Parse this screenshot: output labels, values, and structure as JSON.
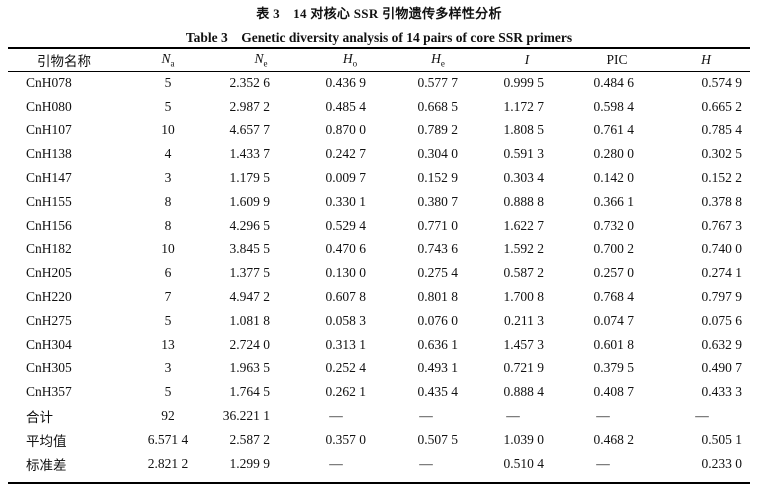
{
  "title_cn": "表 3　14 对核心 SSR 引物遗传多样性分析",
  "title_en": "Table 3　Genetic diversity analysis of 14 pairs of core SSR primers",
  "headers": [
    {
      "main": "引物名称",
      "sub": ""
    },
    {
      "main": "N",
      "sub": "a"
    },
    {
      "main": "N",
      "sub": "e"
    },
    {
      "main": "H",
      "sub": "o"
    },
    {
      "main": "H",
      "sub": "e"
    },
    {
      "main": "I",
      "sub": ""
    },
    {
      "main": "PIC",
      "sub": ""
    },
    {
      "main": "H",
      "sub": ""
    }
  ],
  "rows": [
    [
      "CnH078",
      "5",
      "2.352 6",
      "0.436 9",
      "0.577 7",
      "0.999 5",
      "0.484 6",
      "0.574 9"
    ],
    [
      "CnH080",
      "5",
      "2.987 2",
      "0.485 4",
      "0.668 5",
      "1.172 7",
      "0.598 4",
      "0.665 2"
    ],
    [
      "CnH107",
      "10",
      "4.657 7",
      "0.870 0",
      "0.789 2",
      "1.808 5",
      "0.761 4",
      "0.785 4"
    ],
    [
      "CnH138",
      "4",
      "1.433 7",
      "0.242 7",
      "0.304 0",
      "0.591 3",
      "0.280 0",
      "0.302 5"
    ],
    [
      "CnH147",
      "3",
      "1.179 5",
      "0.009 7",
      "0.152 9",
      "0.303 4",
      "0.142 0",
      "0.152 2"
    ],
    [
      "CnH155",
      "8",
      "1.609 9",
      "0.330 1",
      "0.380 7",
      "0.888 8",
      "0.366 1",
      "0.378 8"
    ],
    [
      "CnH156",
      "8",
      "4.296 5",
      "0.529 4",
      "0.771 0",
      "1.622 7",
      "0.732 0",
      "0.767 3"
    ],
    [
      "CnH182",
      "10",
      "3.845 5",
      "0.470 6",
      "0.743 6",
      "1.592 2",
      "0.700 2",
      "0.740 0"
    ],
    [
      "CnH205",
      "6",
      "1.377 5",
      "0.130 0",
      "0.275 4",
      "0.587 2",
      "0.257 0",
      "0.274 1"
    ],
    [
      "CnH220",
      "7",
      "4.947 2",
      "0.607 8",
      "0.801 8",
      "1.700 8",
      "0.768 4",
      "0.797 9"
    ],
    [
      "CnH275",
      "5",
      "1.081 8",
      "0.058 3",
      "0.076 0",
      "0.211 3",
      "0.074 7",
      "0.075 6"
    ],
    [
      "CnH304",
      "13",
      "2.724 0",
      "0.313 1",
      "0.636 1",
      "1.457 3",
      "0.601 8",
      "0.632 9"
    ],
    [
      "CnH305",
      "3",
      "1.963 5",
      "0.252 4",
      "0.493 1",
      "0.721 9",
      "0.379 5",
      "0.490 7"
    ],
    [
      "CnH357",
      "5",
      "1.764 5",
      "0.262 1",
      "0.435 4",
      "0.888 4",
      "0.408 7",
      "0.433 3"
    ],
    [
      "合计",
      "92",
      "36.221 1",
      "—",
      "—",
      "—",
      "—",
      "—"
    ],
    [
      "平均值",
      "6.571 4",
      "2.587 2",
      "0.357 0",
      "0.507 5",
      "1.039 0",
      "0.468 2",
      "0.505 1"
    ],
    [
      "标准差",
      "2.821 2",
      "1.299 9",
      "—",
      "—",
      "0.510 4",
      "—",
      "0.233 0"
    ]
  ]
}
